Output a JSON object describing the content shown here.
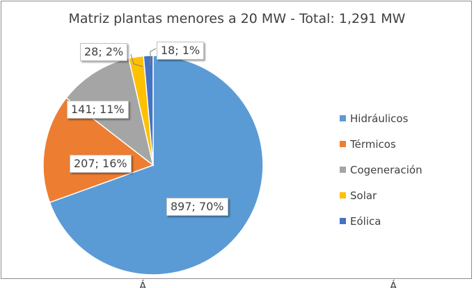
{
  "chart_data": {
    "type": "pie",
    "title": "Matriz plantas menores a 20 MW - Total: 1,291 MW",
    "categories": [
      "Hidráulicos",
      "Térmicos",
      "Cogeneración",
      "Solar",
      "Eólica"
    ],
    "values": [
      897,
      207,
      141,
      28,
      18
    ],
    "data_labels": [
      "897; 70%",
      "207; 16%",
      "141; 11%",
      "28; 2%",
      "18; 1%"
    ],
    "colors": [
      "#5b9bd5",
      "#ed7d31",
      "#a5a5a5",
      "#ffc000",
      "#4472c4"
    ],
    "legend_position": "right"
  },
  "below_text": [
    "Á",
    "Á"
  ]
}
